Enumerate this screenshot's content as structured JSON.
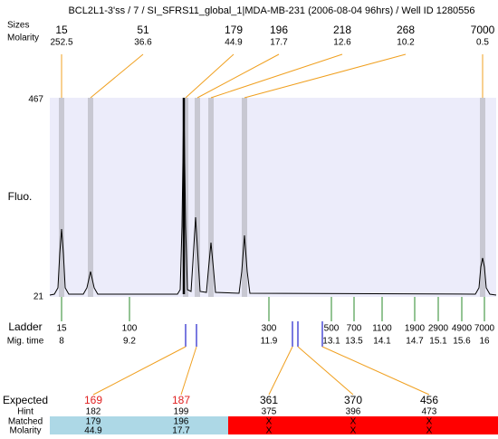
{
  "title": "BCL2L1-3'ss / 7 / SI_SFRS11_global_1|MDA-MB-231 (2006-08-04 96hrs) / Well ID 1280556",
  "peaks": {
    "size_label": "Sizes",
    "molarity_label": "Molarity",
    "sizes": [
      15,
      51,
      179,
      196,
      218,
      268,
      7000
    ],
    "molarity": [
      252.5,
      36.6,
      44.9,
      17.7,
      12.6,
      10.2,
      0.5
    ]
  },
  "y_axis": {
    "label": "Fluo.",
    "max": 467,
    "min": 21
  },
  "ladder": {
    "label": "Ladder",
    "time_label": "Mig. time",
    "sizes": [
      15,
      100,
      300,
      500,
      700,
      1100,
      1900,
      2900,
      4900,
      7000
    ],
    "times": [
      8,
      9.2,
      11.9,
      13.1,
      13.5,
      14.1,
      14.7,
      15.1,
      15.6,
      16
    ]
  },
  "table": {
    "expected_label": "Expected",
    "hint_label": "Hint",
    "matched_label": "Matched",
    "molarity_label": "Molarity",
    "expected": [
      169,
      187,
      361,
      370,
      456
    ],
    "hint": [
      182,
      199,
      375,
      396,
      473
    ],
    "matched": [
      179,
      196,
      "X",
      "X",
      "X"
    ],
    "molarity": [
      44.9,
      17.7,
      "X",
      "X",
      "X"
    ]
  }
}
